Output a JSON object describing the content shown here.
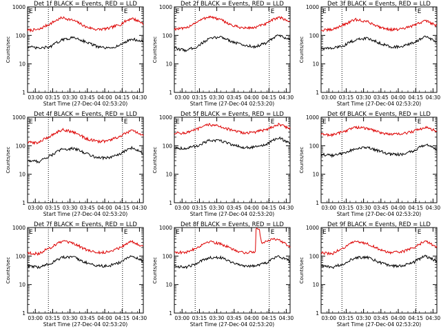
{
  "chart_data": [
    {
      "type": "line",
      "title": "Det 1f BLACK = Events, RED = LLD",
      "ylabel": "Counts/sec",
      "xlabel": "Start Time (27-Dec-04 02:53:20)",
      "x_ticks": [
        "03:00",
        "03:15",
        "03:30",
        "03:45",
        "04:00",
        "04:15",
        "04:30"
      ],
      "y_ticks": [
        "1",
        "10",
        "100",
        "1000"
      ],
      "ylim": [
        1,
        1000
      ],
      "yscale": "log",
      "x_range_minutes_after_start": [
        0,
        100
      ],
      "vlines_minutes_after_start": [
        18,
        82
      ],
      "markers": [
        {
          "label": "E",
          "x": 0
        },
        {
          "label": "E",
          "x": 82
        }
      ],
      "series": [
        {
          "color": "#dd0000",
          "x": [
            0,
            10,
            20,
            30,
            40,
            50,
            60,
            70,
            80,
            90,
            100
          ],
          "values": [
            150,
            160,
            260,
            420,
            330,
            200,
            160,
            175,
            240,
            400,
            260
          ]
        },
        {
          "color": "#000000",
          "x": [
            0,
            10,
            20,
            30,
            40,
            50,
            60,
            70,
            80,
            90,
            100
          ],
          "values": [
            40,
            35,
            40,
            70,
            85,
            60,
            40,
            35,
            45,
            75,
            60
          ]
        }
      ]
    },
    {
      "type": "line",
      "title": "Det 2f BLACK = Events, RED = LLD",
      "ylabel": "Counts/sec",
      "xlabel": "Start Time (27-Dec-04 02:53:20)",
      "x_ticks": [
        "03:00",
        "03:15",
        "03:30",
        "03:45",
        "04:00",
        "04:15",
        "04:30"
      ],
      "y_ticks": [
        "1",
        "10",
        "100",
        "1000"
      ],
      "ylim": [
        1,
        1000
      ],
      "yscale": "log",
      "x_range_minutes_after_start": [
        0,
        100
      ],
      "vlines_minutes_after_start": [
        18,
        82
      ],
      "markers": [
        {
          "label": "E",
          "x": 0
        },
        {
          "label": "E",
          "x": 82
        }
      ],
      "series": [
        {
          "color": "#dd0000",
          "x": [
            0,
            10,
            20,
            30,
            40,
            50,
            60,
            70,
            80,
            90,
            100
          ],
          "values": [
            170,
            175,
            300,
            460,
            350,
            220,
            180,
            190,
            260,
            440,
            300
          ]
        },
        {
          "color": "#000000",
          "x": [
            0,
            10,
            20,
            30,
            40,
            50,
            60,
            70,
            80,
            90,
            100
          ],
          "values": [
            35,
            30,
            40,
            75,
            90,
            60,
            45,
            40,
            55,
            100,
            70
          ]
        }
      ]
    },
    {
      "type": "line",
      "title": "Det 3f BLACK = Events, RED = LLD",
      "ylabel": "Counts/sec",
      "xlabel": "Start Time (27-Dec-04 02:53:20)",
      "x_ticks": [
        "03:00",
        "03:15",
        "03:30",
        "03:45",
        "04:00",
        "04:15",
        "04:30"
      ],
      "y_ticks": [
        "1",
        "10",
        "100",
        "1000"
      ],
      "ylim": [
        1,
        1000
      ],
      "yscale": "log",
      "x_range_minutes_after_start": [
        0,
        100
      ],
      "vlines_minutes_after_start": [
        18,
        82
      ],
      "markers": [
        {
          "label": "E",
          "x": 0
        },
        {
          "label": "E",
          "x": 82
        }
      ],
      "series": [
        {
          "color": "#dd0000",
          "x": [
            0,
            10,
            20,
            30,
            40,
            50,
            60,
            70,
            80,
            90,
            100
          ],
          "values": [
            150,
            160,
            240,
            360,
            300,
            200,
            160,
            165,
            220,
            330,
            220
          ]
        },
        {
          "color": "#000000",
          "x": [
            0,
            10,
            20,
            30,
            40,
            50,
            60,
            70,
            80,
            90,
            100
          ],
          "values": [
            35,
            35,
            45,
            70,
            80,
            55,
            40,
            40,
            55,
            90,
            55
          ]
        }
      ]
    },
    {
      "type": "line",
      "title": "Det 4f BLACK = Events, RED = LLD",
      "ylabel": "Counts/sec",
      "xlabel": "Start Time (27-Dec-04 02:53:20)",
      "x_ticks": [
        "03:00",
        "03:15",
        "03:30",
        "03:45",
        "04:00",
        "04:15",
        "04:30"
      ],
      "y_ticks": [
        "1",
        "10",
        "100",
        "1000"
      ],
      "ylim": [
        1,
        1000
      ],
      "yscale": "log",
      "x_range_minutes_after_start": [
        0,
        100
      ],
      "vlines_minutes_after_start": [
        18,
        82
      ],
      "markers": [
        {
          "label": "E",
          "x": 0
        },
        {
          "label": "E",
          "x": 82
        }
      ],
      "series": [
        {
          "color": "#dd0000",
          "x": [
            0,
            10,
            20,
            30,
            40,
            50,
            60,
            70,
            80,
            90,
            100
          ],
          "values": [
            130,
            130,
            220,
            370,
            300,
            180,
            140,
            150,
            210,
            340,
            220
          ]
        },
        {
          "color": "#000000",
          "x": [
            0,
            10,
            20,
            30,
            40,
            50,
            60,
            70,
            80,
            90,
            100
          ],
          "values": [
            30,
            28,
            45,
            75,
            80,
            55,
            38,
            38,
            50,
            85,
            55
          ]
        }
      ]
    },
    {
      "type": "line",
      "title": "Det 5f BLACK = Events, RED = LLD",
      "ylabel": "Counts/sec",
      "xlabel": "Start Time (27-Dec-04 02:53:20)",
      "x_ticks": [
        "03:00",
        "03:15",
        "03:30",
        "03:45",
        "04:00",
        "04:15",
        "04:30"
      ],
      "y_ticks": [
        "1",
        "10",
        "100",
        "1000"
      ],
      "ylim": [
        1,
        1000
      ],
      "yscale": "log",
      "x_range_minutes_after_start": [
        0,
        100
      ],
      "vlines_minutes_after_start": [
        18,
        82
      ],
      "markers": [
        {
          "label": "E",
          "x": 0
        },
        {
          "label": "E",
          "x": 82
        }
      ],
      "series": [
        {
          "color": "#dd0000",
          "x": [
            0,
            10,
            20,
            30,
            40,
            50,
            60,
            70,
            80,
            90,
            100
          ],
          "values": [
            280,
            280,
            380,
            560,
            470,
            340,
            280,
            300,
            380,
            560,
            400
          ]
        },
        {
          "color": "#000000",
          "x": [
            0,
            10,
            20,
            30,
            40,
            50,
            60,
            70,
            80,
            90,
            100
          ],
          "values": [
            85,
            80,
            100,
            150,
            150,
            110,
            85,
            90,
            110,
            190,
            120
          ]
        }
      ]
    },
    {
      "type": "line",
      "title": "Det 6f BLACK = Events, RED = LLD",
      "ylabel": "Counts/sec",
      "xlabel": "Start Time (27-Dec-04 02:53:20)",
      "x_ticks": [
        "03:00",
        "03:15",
        "03:30",
        "03:45",
        "04:00",
        "04:15",
        "04:30"
      ],
      "y_ticks": [
        "1",
        "10",
        "100",
        "1000"
      ],
      "ylim": [
        1,
        1000
      ],
      "yscale": "log",
      "x_range_minutes_after_start": [
        0,
        100
      ],
      "vlines_minutes_after_start": [
        18,
        82
      ],
      "markers": [
        {
          "label": "E",
          "x": 0
        },
        {
          "label": "E",
          "x": 82
        }
      ],
      "series": [
        {
          "color": "#dd0000",
          "x": [
            0,
            10,
            20,
            30,
            40,
            50,
            60,
            70,
            80,
            90,
            100
          ],
          "values": [
            250,
            240,
            320,
            450,
            400,
            300,
            250,
            260,
            320,
            450,
            320
          ]
        },
        {
          "color": "#000000",
          "x": [
            0,
            10,
            20,
            30,
            40,
            50,
            60,
            70,
            80,
            90,
            100
          ],
          "values": [
            50,
            45,
            55,
            80,
            85,
            65,
            50,
            50,
            65,
            110,
            70
          ]
        }
      ]
    },
    {
      "type": "line",
      "title": "Det 7f BLACK = Events, RED = LLD",
      "ylabel": "Counts/sec",
      "xlabel": "Start Time (27-Dec-04 02:53:20)",
      "x_ticks": [
        "03:00",
        "03:15",
        "03:30",
        "03:45",
        "04:00",
        "04:15",
        "04:30"
      ],
      "y_ticks": [
        "1",
        "10",
        "100",
        "1000"
      ],
      "ylim": [
        1,
        1000
      ],
      "yscale": "log",
      "x_range_minutes_after_start": [
        0,
        100
      ],
      "vlines_minutes_after_start": [
        18,
        82
      ],
      "markers": [
        {
          "label": "E",
          "x": 0
        },
        {
          "label": "E",
          "x": 82
        }
      ],
      "series": [
        {
          "color": "#dd0000",
          "x": [
            0,
            10,
            20,
            30,
            40,
            50,
            60,
            70,
            80,
            90,
            100
          ],
          "values": [
            130,
            120,
            200,
            330,
            270,
            170,
            130,
            140,
            200,
            330,
            210
          ]
        },
        {
          "color": "#000000",
          "x": [
            0,
            10,
            20,
            30,
            40,
            50,
            60,
            70,
            80,
            90,
            100
          ],
          "values": [
            45,
            40,
            55,
            90,
            90,
            60,
            45,
            45,
            60,
            100,
            65
          ]
        }
      ]
    },
    {
      "type": "line",
      "title": "Det 8f BLACK = Events, RED = LLD",
      "ylabel": "Counts/sec",
      "xlabel": "Start Time (27-Dec-04 02:53:20)",
      "x_ticks": [
        "03:00",
        "03:15",
        "03:30",
        "03:45",
        "04:00",
        "04:15",
        "04:30"
      ],
      "y_ticks": [
        "1",
        "10",
        "100",
        "1000"
      ],
      "ylim": [
        1,
        1000
      ],
      "yscale": "log",
      "x_range_minutes_after_start": [
        0,
        100
      ],
      "vlines_minutes_after_start": [
        18,
        82
      ],
      "markers": [
        {
          "label": "E",
          "x": 0
        },
        {
          "label": "E",
          "x": 82
        }
      ],
      "series": [
        {
          "color": "#dd0000",
          "x": [
            0,
            10,
            20,
            30,
            40,
            50,
            60,
            70,
            70.5,
            73,
            75,
            80,
            85,
            90,
            100
          ],
          "values": [
            140,
            130,
            200,
            330,
            270,
            170,
            130,
            140,
            950,
            950,
            300,
            330,
            420,
            370,
            200
          ]
        },
        {
          "color": "#000000",
          "x": [
            0,
            10,
            20,
            30,
            40,
            50,
            60,
            70,
            80,
            90,
            100
          ],
          "values": [
            45,
            40,
            55,
            90,
            90,
            60,
            45,
            45,
            60,
            100,
            65
          ]
        }
      ]
    },
    {
      "type": "line",
      "title": "Det 9f BLACK = Events, RED = LLD",
      "ylabel": "Counts/sec",
      "xlabel": "Start Time (27-Dec-04 02:53:20)",
      "x_ticks": [
        "03:00",
        "03:15",
        "03:30",
        "03:45",
        "04:00",
        "04:15",
        "04:30"
      ],
      "y_ticks": [
        "1",
        "10",
        "100",
        "1000"
      ],
      "ylim": [
        1,
        1000
      ],
      "yscale": "log",
      "x_range_minutes_after_start": [
        0,
        100
      ],
      "vlines_minutes_after_start": [
        18,
        82
      ],
      "markers": [
        {
          "label": "E",
          "x": 0
        },
        {
          "label": "E",
          "x": 82
        }
      ],
      "series": [
        {
          "color": "#dd0000",
          "x": [
            0,
            10,
            20,
            30,
            40,
            50,
            60,
            70,
            80,
            90,
            100
          ],
          "values": [
            130,
            120,
            200,
            330,
            270,
            170,
            130,
            140,
            200,
            330,
            210
          ]
        },
        {
          "color": "#000000",
          "x": [
            0,
            10,
            20,
            30,
            40,
            50,
            60,
            70,
            80,
            90,
            100
          ],
          "values": [
            45,
            40,
            55,
            90,
            90,
            60,
            45,
            45,
            60,
            100,
            65
          ]
        }
      ]
    }
  ]
}
